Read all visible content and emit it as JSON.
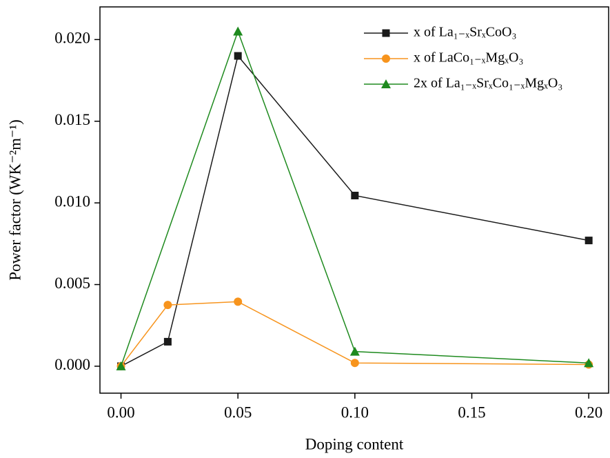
{
  "chart_data": {
    "type": "line",
    "x_label": "Doping content",
    "y_label": "Power factor (WK⁻²m⁻¹)",
    "xlim": [
      -0.009,
      0.2085
    ],
    "ylim": [
      -0.00165,
      0.022
    ],
    "xticks": [
      {
        "value": 0,
        "label": "0.00"
      },
      {
        "value": 0.05,
        "label": "0.05"
      },
      {
        "value": 0.1,
        "label": "0.10"
      },
      {
        "value": 0.15,
        "label": "0.15"
      },
      {
        "value": 0.2,
        "label": "0.20"
      }
    ],
    "yticks": [
      {
        "value": 0,
        "label": "0.000"
      },
      {
        "value": 0.005,
        "label": "0.005"
      },
      {
        "value": 0.01,
        "label": "0.010"
      },
      {
        "value": 0.015,
        "label": "0.015"
      },
      {
        "value": 0.02,
        "label": "0.020"
      }
    ],
    "legend": "upper right",
    "series": [
      {
        "name": "x of La₁₋ₓSrₓCoO₃",
        "color": "#1a1a1a",
        "marker": "square",
        "x": [
          0,
          0.02,
          0.05,
          0.1,
          0.2
        ],
        "values": [
          0,
          0.0015,
          0.019,
          0.01045,
          0.0077
        ]
      },
      {
        "name": "x of LaCo₁₋ₓMgₓO₃",
        "color": "#f7941d",
        "marker": "circle",
        "x": [
          0,
          0.02,
          0.05,
          0.1,
          0.2
        ],
        "values": [
          0,
          0.00375,
          0.00395,
          0.0002,
          0.0001
        ]
      },
      {
        "name": "2x of La₁₋ₓSrₓCo₁₋ₓMgₓO₃",
        "color": "#1e8a1e",
        "marker": "triangle",
        "x": [
          0,
          0.05,
          0.1,
          0.2
        ],
        "values": [
          0,
          0.0205,
          0.0009,
          0.0002
        ]
      }
    ]
  }
}
